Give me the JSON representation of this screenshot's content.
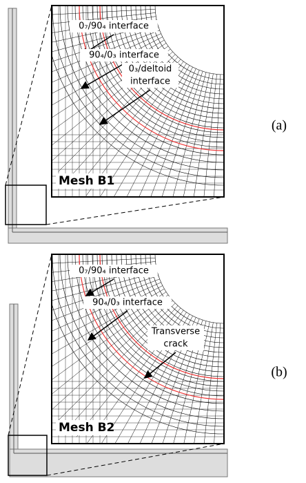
{
  "panels": [
    {
      "label": "(a)",
      "mesh": "Mesh B1",
      "annotations": [
        [
          "0₇/90₄ interface"
        ],
        [
          "90₄/0₃ interface"
        ],
        [
          "0₃/deltoid",
          "interface"
        ]
      ]
    },
    {
      "label": "(b)",
      "mesh": "Mesh B2",
      "annotations": [
        [
          "0₇/90₄ interface"
        ],
        [
          "90₄/0₃ interface"
        ],
        [
          "Transverse",
          "crack"
        ]
      ]
    }
  ]
}
